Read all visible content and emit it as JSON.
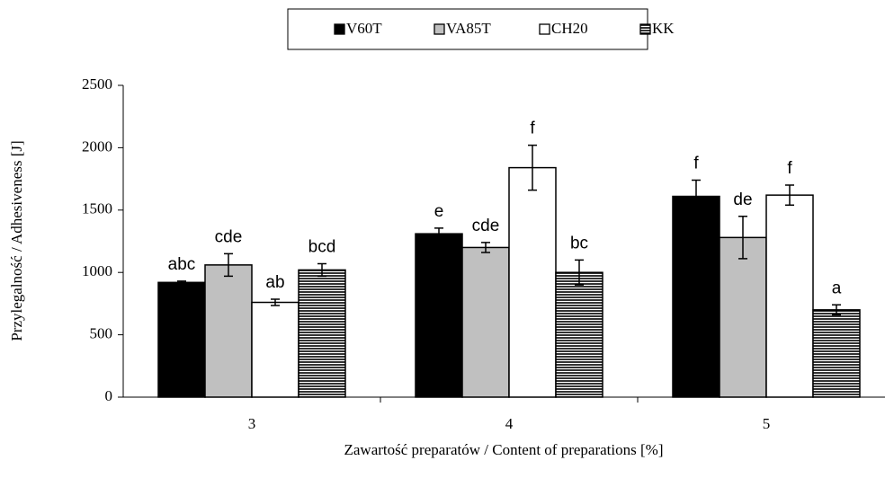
{
  "chart_data": {
    "type": "bar",
    "y_label": "Przylegalność / Adhesiveness [J]",
    "x_label": "Zawartość preparatów / Content of preparations [%]",
    "categories": [
      "3",
      "4",
      "5"
    ],
    "series": [
      {
        "name": "V60T",
        "color": "#000000",
        "values": [
          920,
          1310,
          1610
        ],
        "errors": [
          10,
          45,
          130
        ],
        "letters": [
          "abc",
          "e",
          "f"
        ]
      },
      {
        "name": "VA85T",
        "color": "#c0c0c0",
        "values": [
          1060,
          1200,
          1280
        ],
        "errors": [
          90,
          40,
          170
        ],
        "letters": [
          "cde",
          "cde",
          "de"
        ]
      },
      {
        "name": "CH20",
        "color": "#ffffff",
        "values": [
          760,
          1840,
          1620
        ],
        "errors": [
          25,
          180,
          80
        ],
        "letters": [
          "ab",
          "f",
          "f"
        ]
      },
      {
        "name": "KK",
        "color": "#ffffff",
        "pattern": "horizontal-lines",
        "values": [
          1020,
          1000,
          700
        ],
        "errors": [
          50,
          100,
          40
        ],
        "letters": [
          "bcd",
          "bc",
          "a"
        ]
      }
    ],
    "ylim": [
      0,
      2500
    ],
    "yticks": [
      0,
      500,
      1000,
      1500,
      2000,
      2500
    ],
    "legend": "top"
  }
}
